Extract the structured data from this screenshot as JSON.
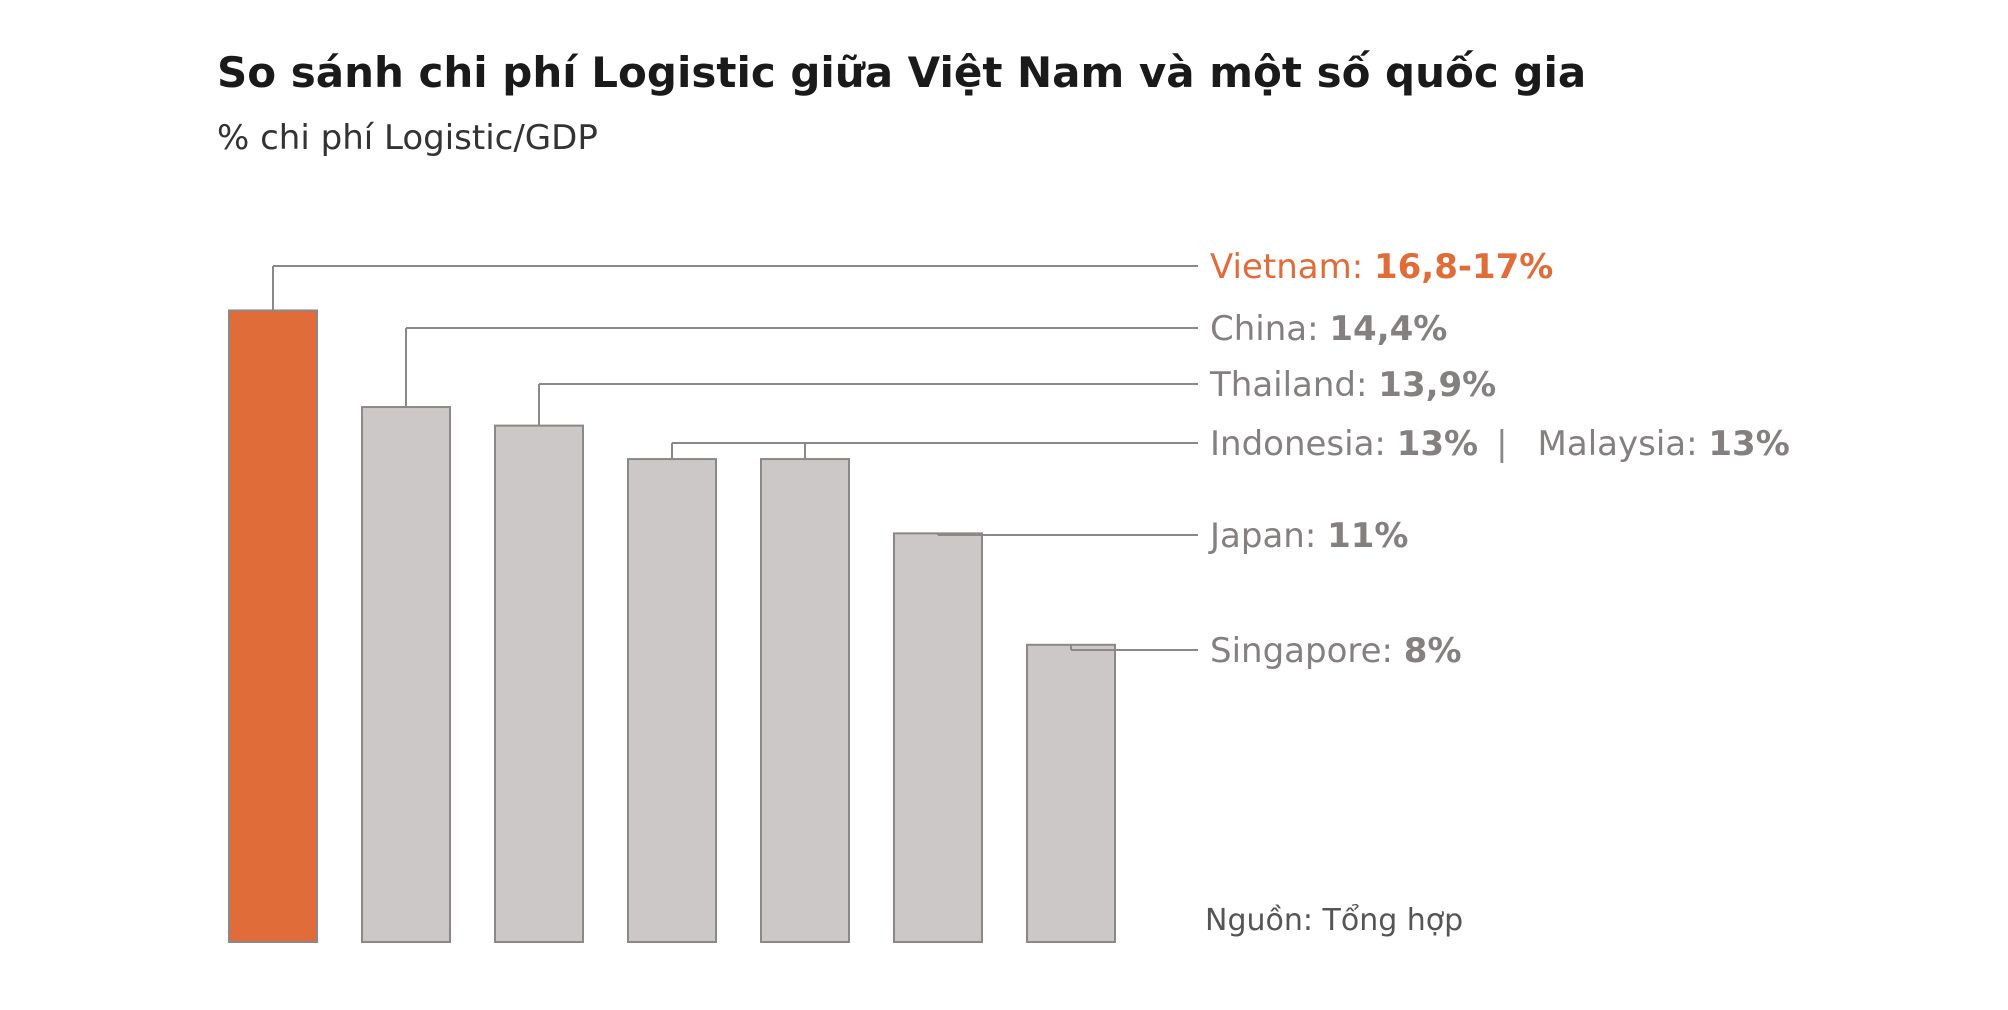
{
  "title": "So sánh chi phí Logistic giữa Việt Nam và một số quốc gia",
  "subtitle": "% chi phí Logistic/GDP",
  "source": "Nguồn: Tổng hợp",
  "colors": {
    "highlight": "#e06c3a",
    "bar": "#cbc8c7",
    "bar_stroke": "#8c8888",
    "label": "#848080",
    "leader": "#8c8888"
  },
  "chart_data": {
    "type": "bar",
    "title": "So sánh chi phí Logistic giữa Việt Nam và một số quốc gia",
    "subtitle": "% chi phí Logistic/GDP",
    "categories": [
      "Vietnam",
      "China",
      "Thailand",
      "Indonesia",
      "Malaysia",
      "Japan",
      "Singapore"
    ],
    "values": [
      17,
      14.4,
      13.9,
      13,
      13,
      11,
      8
    ],
    "value_labels": [
      "16,8-17%",
      "14,4%",
      "13,9%",
      "13%",
      "13%",
      "11%",
      "8%"
    ],
    "highlight_category": "Vietnam",
    "grid": false,
    "legend": "none",
    "xlabel": "",
    "ylabel": ""
  }
}
